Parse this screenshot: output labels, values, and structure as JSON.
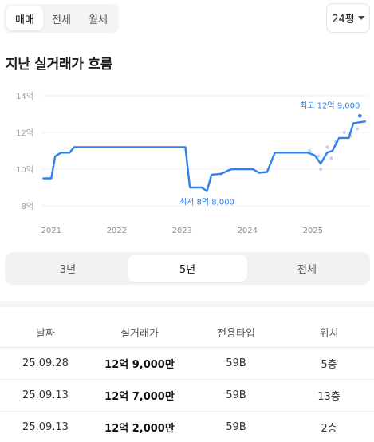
{
  "top_tabs": [
    {
      "label": "매매",
      "active": true
    },
    {
      "label": "전세",
      "active": false
    },
    {
      "label": "월세",
      "active": false
    }
  ],
  "size_select": {
    "value": "24평",
    "icon": "chevron-down-icon"
  },
  "section_title": "지난 실거래가 흐름",
  "chart_data": {
    "type": "line",
    "title": "",
    "xlabel": "",
    "ylabel": "",
    "x_ticks": [
      "2021",
      "2022",
      "2023",
      "2024",
      "2025"
    ],
    "y_ticks": [
      "14억",
      "12억",
      "10억",
      "8억"
    ],
    "ylim": [
      8,
      14
    ],
    "xlim": [
      2020.85,
      2025.85
    ],
    "grid": true,
    "accent_color": "#2f80ed",
    "series": [
      {
        "values": [
          [
            2020.88,
            9.5
          ],
          [
            2021.0,
            9.5
          ],
          [
            2021.06,
            10.7
          ],
          [
            2021.15,
            10.9
          ],
          [
            2021.28,
            10.9
          ],
          [
            2021.35,
            11.2
          ],
          [
            2023.05,
            11.2
          ],
          [
            2023.12,
            9.0
          ],
          [
            2023.3,
            9.0
          ],
          [
            2023.38,
            8.8
          ],
          [
            2023.45,
            9.7
          ],
          [
            2023.6,
            9.75
          ],
          [
            2023.75,
            10.0
          ],
          [
            2023.98,
            10.0
          ],
          [
            2024.08,
            10.0
          ],
          [
            2024.18,
            9.8
          ],
          [
            2024.3,
            9.85
          ],
          [
            2024.42,
            10.9
          ],
          [
            2024.55,
            10.9
          ],
          [
            2024.92,
            10.9
          ],
          [
            2025.03,
            10.75
          ],
          [
            2025.12,
            10.3
          ],
          [
            2025.22,
            10.9
          ],
          [
            2025.3,
            11.0
          ],
          [
            2025.4,
            11.7
          ],
          [
            2025.55,
            11.7
          ],
          [
            2025.62,
            12.5
          ],
          [
            2025.8,
            12.6
          ]
        ]
      }
    ],
    "points": [
      [
        2023.6,
        9.75
      ],
      [
        2023.75,
        10.0
      ],
      [
        2024.95,
        11.0
      ],
      [
        2025.08,
        10.7
      ],
      [
        2025.12,
        10.0
      ],
      [
        2025.22,
        11.2
      ],
      [
        2025.28,
        10.6
      ],
      [
        2025.35,
        11.5
      ],
      [
        2025.48,
        12.0
      ],
      [
        2025.58,
        11.8
      ],
      [
        2025.68,
        12.2
      ],
      [
        2025.72,
        12.9
      ]
    ],
    "annotations": [
      {
        "text": "최고 12억 9,000",
        "x": 2025.72,
        "y": 12.9,
        "position": "above"
      },
      {
        "text": "최저 8억 8,000",
        "x": 2023.38,
        "y": 8.8,
        "position": "below"
      }
    ]
  },
  "period_tabs": [
    {
      "label": "3년",
      "active": false
    },
    {
      "label": "5년",
      "active": true
    },
    {
      "label": "전체",
      "active": false
    }
  ],
  "table": {
    "headers": [
      "날짜",
      "실거래가",
      "전용타입",
      "위치"
    ],
    "rows": [
      {
        "date": "25.09.28",
        "price": "12억 9,000만",
        "type": "59B",
        "floor": "5층"
      },
      {
        "date": "25.09.13",
        "price": "12억 7,000만",
        "type": "59B",
        "floor": "13층"
      },
      {
        "date": "25.09.13",
        "price": "12억 2,000만",
        "type": "59B",
        "floor": "2층"
      }
    ]
  }
}
